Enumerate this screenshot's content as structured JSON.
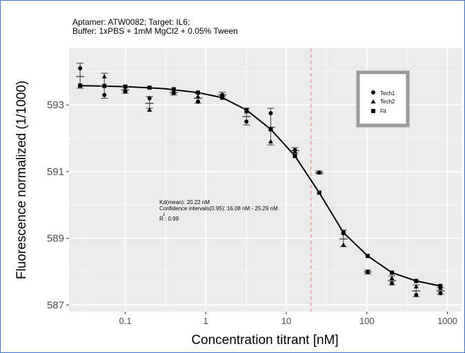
{
  "chart_data": {
    "type": "scatter",
    "title": "Aptamer: ATW0082; Target: IL6;",
    "subtitle": "Buffer: 1xPBS + 1mM MgCl2 + 0.05% Tween",
    "xlabel": "Concentration titrant [nM]",
    "ylabel": "Fluorescence normalized (1/1000)",
    "x_scale": "log",
    "xlim": [
      0.02,
      1500
    ],
    "ylim": [
      586.8,
      594.7
    ],
    "x_ticks": [
      0.1,
      1,
      10,
      100,
      1000
    ],
    "x_tick_labels": [
      "0.1",
      "1",
      "10",
      "100",
      "1000"
    ],
    "y_ticks": [
      587,
      589,
      591,
      593
    ],
    "y_tick_labels": [
      "587",
      "589",
      "591",
      "593"
    ],
    "grid": true,
    "legend_position": "top-right",
    "legend": [
      "Tech1",
      "Tech2",
      "Fit"
    ],
    "kd_line_x": 20.22,
    "kd_line_color": "#e8736d",
    "background_color": "#ebebeb",
    "annotation": {
      "line1": "Kd(mean): 20.22 nM",
      "line2": "Confidence intervals(0.95): 16.08 nM - 25.29 nM",
      "line3": "R : 0.99",
      "r_superscript": "2"
    },
    "x": [
      0.0275,
      0.055,
      0.1,
      0.2,
      0.4,
      0.8,
      1.6,
      3.2,
      6.4,
      12.8,
      25.6,
      51.2,
      102.4,
      204.8,
      409.6,
      819.2
    ],
    "series": [
      {
        "name": "Tech1",
        "marker": "circle",
        "values": [
          594.1,
          593.3,
          593.4,
          593.2,
          593.35,
          593.1,
          593.3,
          592.5,
          592.75,
          591.65,
          590.97,
          589.15,
          588.0,
          587.65,
          587.3,
          587.35
        ]
      },
      {
        "name": "Tech2",
        "marker": "triangle",
        "values": [
          593.6,
          593.85,
          593.45,
          592.85,
          593.4,
          593.25,
          593.25,
          592.8,
          591.9,
          591.6,
          590.97,
          588.8,
          587.98,
          587.8,
          587.55,
          587.5
        ]
      },
      {
        "name": "Fit",
        "marker": "square",
        "values": [
          593.58,
          593.57,
          593.55,
          593.52,
          593.47,
          593.37,
          593.22,
          592.85,
          592.27,
          591.47,
          590.37,
          589.17,
          588.47,
          587.97,
          587.72,
          587.57
        ]
      }
    ],
    "error_bars": {
      "mean": [
        593.85,
        593.57,
        593.45,
        593.05,
        593.37,
        593.2,
        593.3,
        592.65,
        592.33,
        591.63,
        590.97,
        588.98,
        587.99,
        587.73,
        587.42,
        587.42
      ],
      "low": [
        593.5,
        593.2,
        593.35,
        592.9,
        593.3,
        593.05,
        593.25,
        592.4,
        591.8,
        591.55,
        590.93,
        588.75,
        587.93,
        587.6,
        587.25,
        587.32
      ],
      "high": [
        594.25,
        593.95,
        593.55,
        593.25,
        593.45,
        593.35,
        593.38,
        592.9,
        592.9,
        591.72,
        591.02,
        589.25,
        588.05,
        587.87,
        587.6,
        587.52
      ]
    },
    "fit_curve": {
      "x": [
        0.0275,
        0.1,
        0.3,
        0.8,
        1.6,
        3.2,
        6.4,
        12.8,
        25.6,
        51.2,
        102.4,
        204.8,
        409.6,
        819.2
      ],
      "values": [
        593.58,
        593.55,
        593.49,
        593.37,
        593.22,
        592.85,
        592.27,
        591.47,
        590.37,
        589.17,
        588.47,
        587.97,
        587.72,
        587.57
      ]
    }
  }
}
